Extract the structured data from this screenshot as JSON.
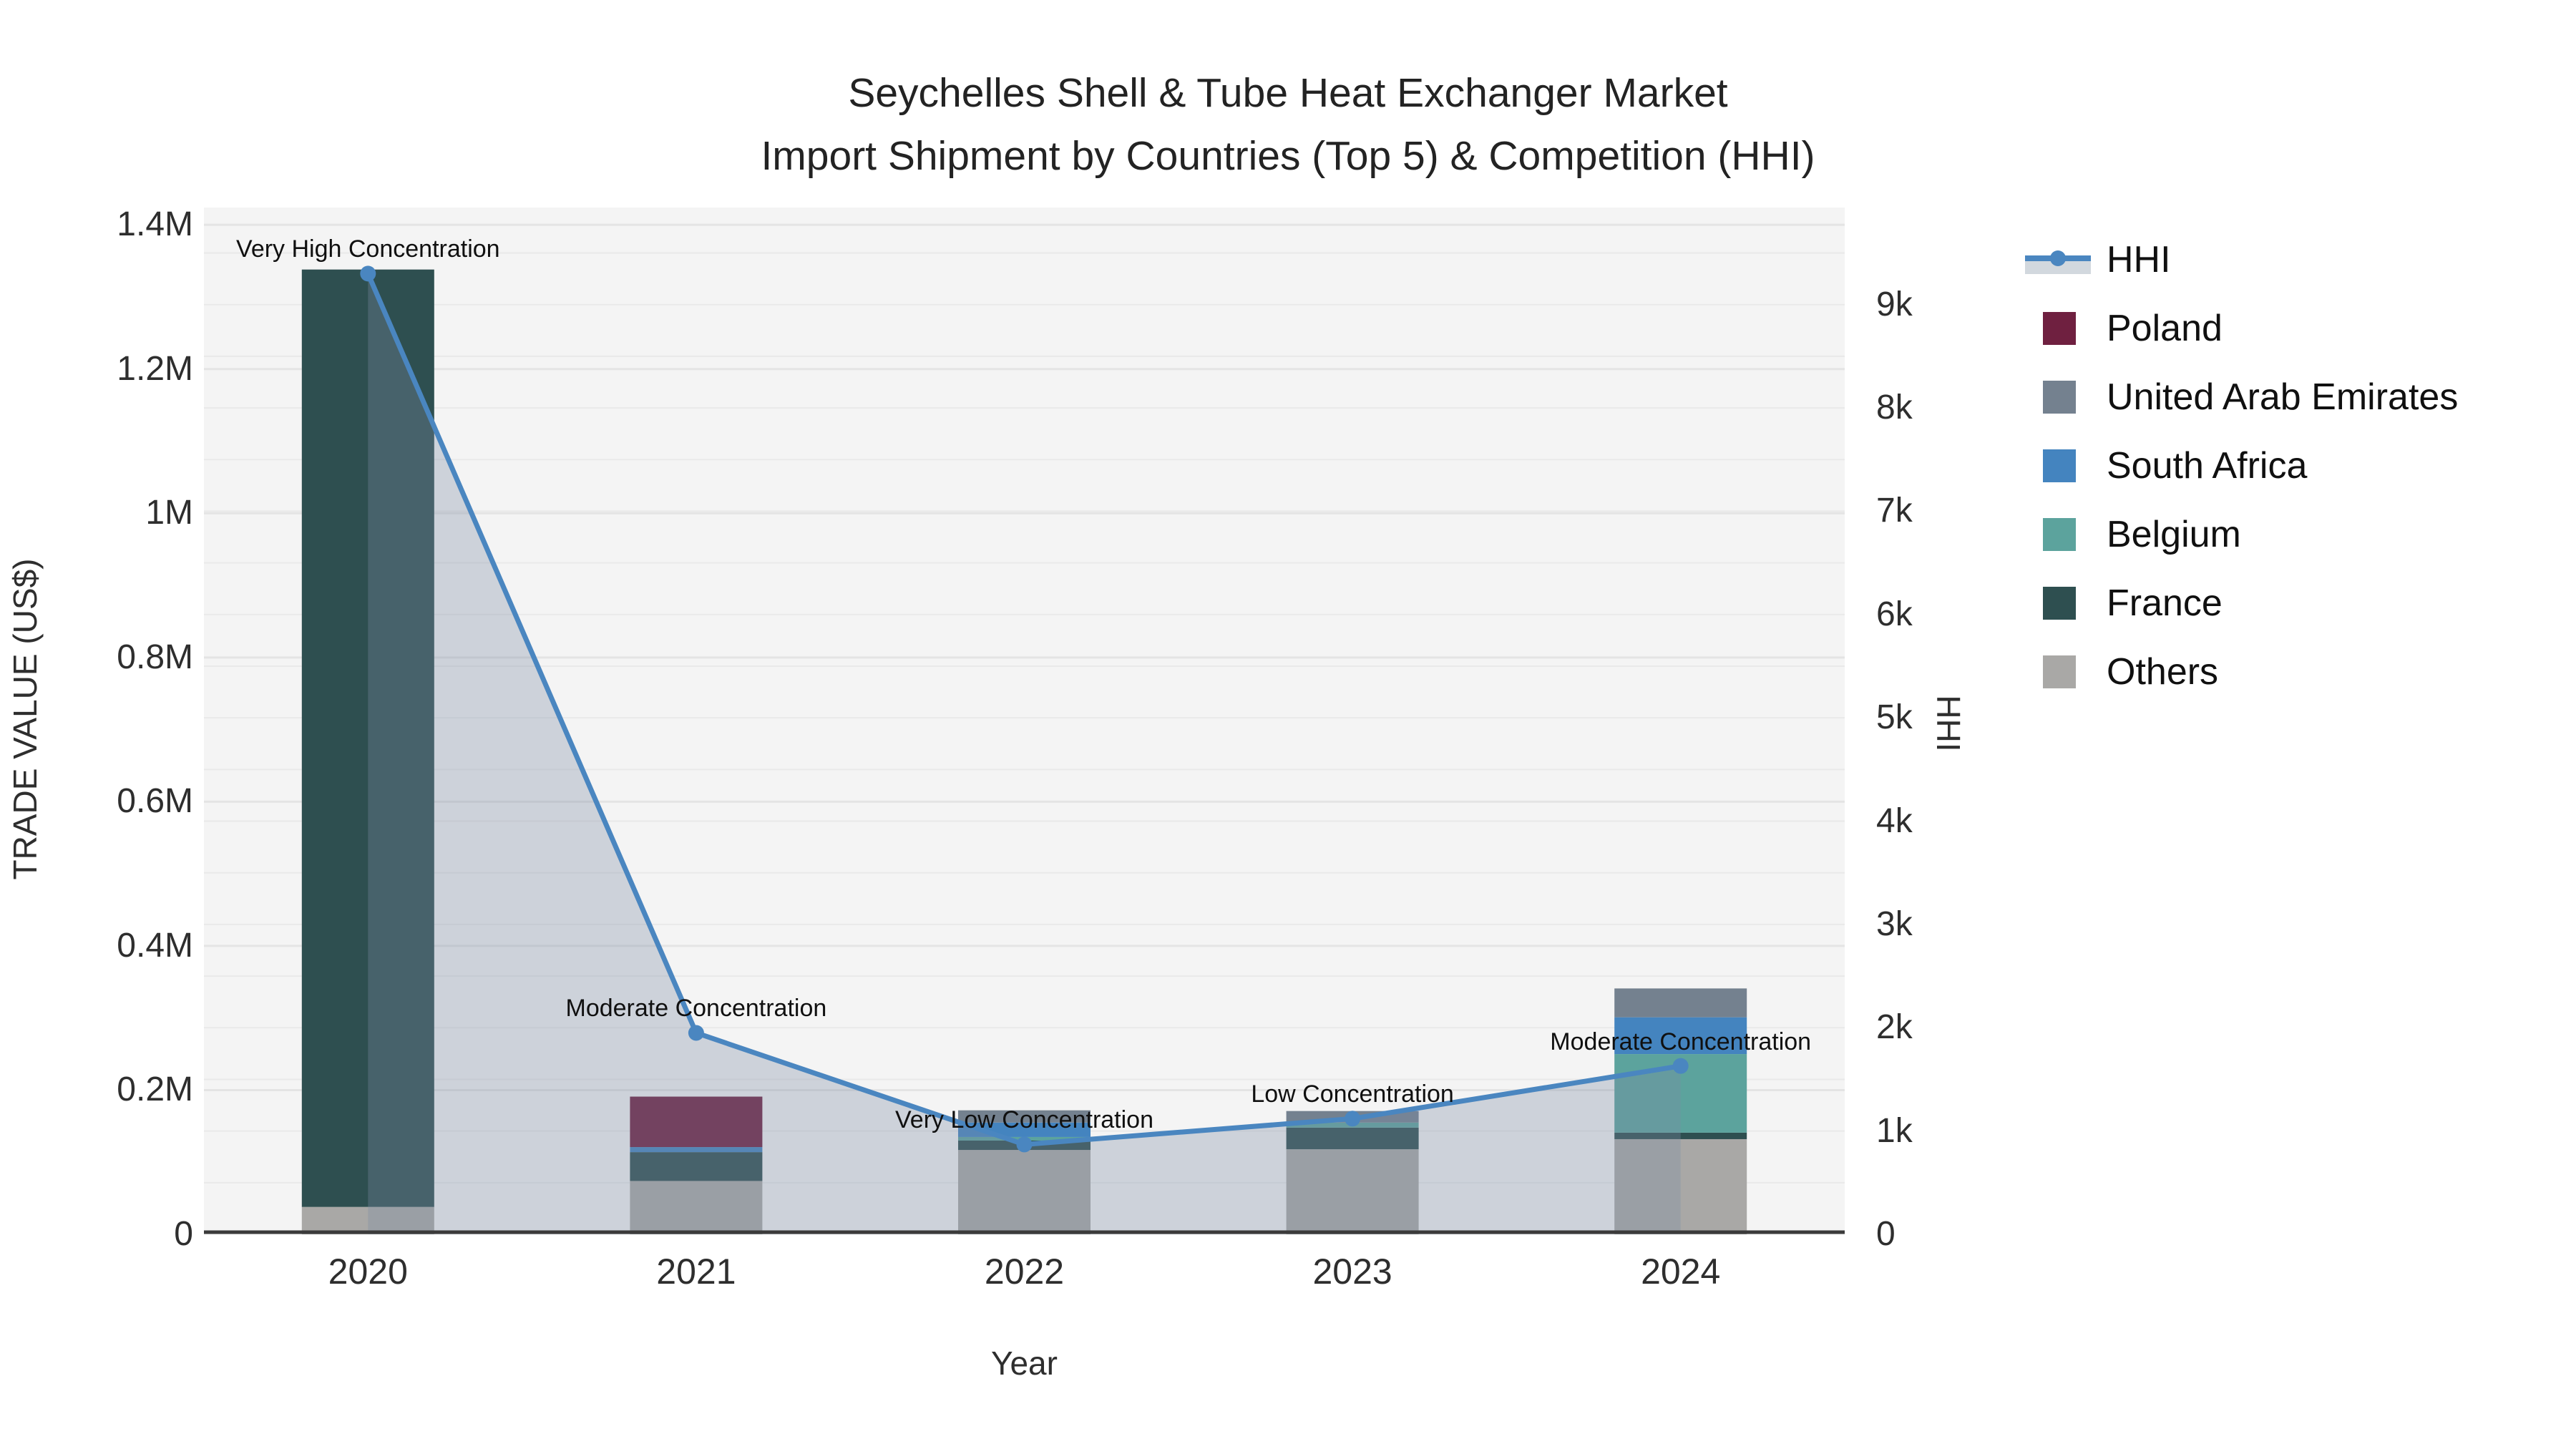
{
  "title": {
    "line1": "Seychelles Shell & Tube Heat Exchanger Market",
    "line2": "Import Shipment by Countries (Top 5) & Competition (HHI)"
  },
  "chart_data": {
    "type": "combo-stacked-bar-line",
    "categories": [
      "2020",
      "2021",
      "2022",
      "2023",
      "2024"
    ],
    "xlabel": "Year",
    "left_axis": {
      "label": "TRADE VALUE (US$)",
      "max": 1424000,
      "ticks": [
        {
          "v": 0,
          "label": "0"
        },
        {
          "v": 200000,
          "label": "0.2M"
        },
        {
          "v": 400000,
          "label": "0.4M"
        },
        {
          "v": 600000,
          "label": "0.6M"
        },
        {
          "v": 800000,
          "label": "0.8M"
        },
        {
          "v": 1000000,
          "label": "1M"
        },
        {
          "v": 1200000,
          "label": "1.2M"
        },
        {
          "v": 1400000,
          "label": "1.4M"
        }
      ]
    },
    "right_axis": {
      "label": "HHI",
      "max": 9940,
      "minor_grid_step": 500,
      "ticks": [
        {
          "v": 0,
          "label": "0"
        },
        {
          "v": 1000,
          "label": "1k"
        },
        {
          "v": 2000,
          "label": "2k"
        },
        {
          "v": 3000,
          "label": "3k"
        },
        {
          "v": 4000,
          "label": "4k"
        },
        {
          "v": 5000,
          "label": "5k"
        },
        {
          "v": 6000,
          "label": "6k"
        },
        {
          "v": 7000,
          "label": "7k"
        },
        {
          "v": 8000,
          "label": "8k"
        },
        {
          "v": 9000,
          "label": "9k"
        }
      ]
    },
    "bar_series": [
      {
        "name": "Others",
        "color": "#a9a8a6",
        "values": [
          38000,
          74000,
          117000,
          118000,
          132000
        ]
      },
      {
        "name": "France",
        "color": "#2e4f50",
        "values": [
          1300000,
          40000,
          13000,
          30000,
          9000
        ]
      },
      {
        "name": "Belgium",
        "color": "#5ca39d",
        "values": [
          0,
          0,
          5000,
          7000,
          109000
        ]
      },
      {
        "name": "South Africa",
        "color": "#4484bf",
        "values": [
          0,
          7000,
          20000,
          0,
          51000
        ]
      },
      {
        "name": "United Arab Emirates",
        "color": "#74818f",
        "values": [
          0,
          0,
          17000,
          16000,
          40000
        ]
      },
      {
        "name": "Poland",
        "color": "#6f2040",
        "values": [
          0,
          70000,
          0,
          0,
          0
        ]
      }
    ],
    "line_series": {
      "name": "HHI",
      "color": "#4a86c0",
      "area_fill": "rgba(124,141,164,0.32)",
      "values": [
        9300,
        1950,
        870,
        1120,
        1630
      ]
    },
    "annotations": [
      {
        "year": "2020",
        "x_index": 0,
        "text": "Very High Concentration"
      },
      {
        "year": "2021",
        "x_index": 1,
        "text": "Moderate Concentration"
      },
      {
        "year": "2022",
        "x_index": 2,
        "text": "Very Low Concentration"
      },
      {
        "year": "2023",
        "x_index": 3,
        "text": "Low Concentration"
      },
      {
        "year": "2024",
        "x_index": 4,
        "text": "Moderate Concentration"
      }
    ]
  },
  "legend": {
    "items": [
      {
        "label": "HHI",
        "type": "line",
        "color": "#4a86c0",
        "fill": "#d2d8de"
      },
      {
        "label": "Poland",
        "type": "square",
        "color": "#6f2040"
      },
      {
        "label": "United Arab Emirates",
        "type": "square",
        "color": "#74818f"
      },
      {
        "label": "South Africa",
        "type": "square",
        "color": "#4484bf"
      },
      {
        "label": "Belgium",
        "type": "square",
        "color": "#5ca39d"
      },
      {
        "label": "France",
        "type": "square",
        "color": "#2e4f50"
      },
      {
        "label": "Others",
        "type": "square",
        "color": "#a9a8a6"
      }
    ]
  }
}
